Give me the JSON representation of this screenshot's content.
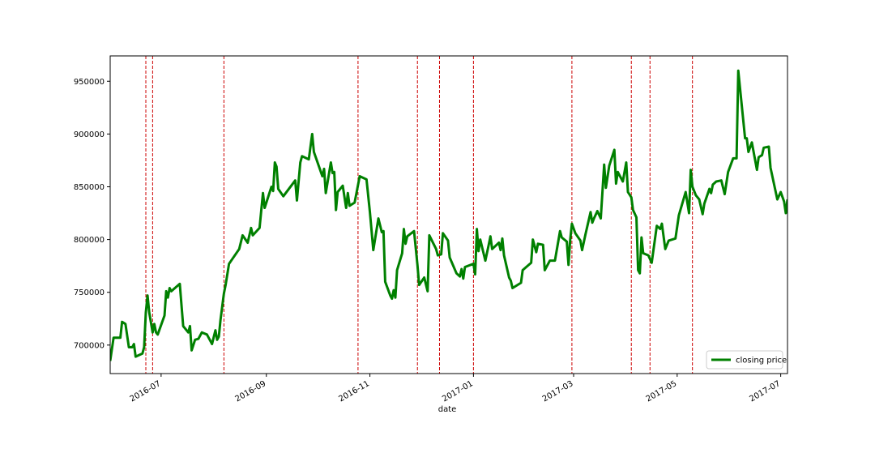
{
  "chart_data": {
    "type": "line",
    "x_label": "date",
    "x": [
      "2016-06-01",
      "2016-06-03",
      "2016-06-07",
      "2016-06-08",
      "2016-06-10",
      "2016-06-12",
      "2016-06-14",
      "2016-06-15",
      "2016-06-16",
      "2016-06-20",
      "2016-06-21",
      "2016-06-22",
      "2016-06-23",
      "2016-06-24",
      "2016-06-26",
      "2016-06-27",
      "2016-06-28",
      "2016-06-29",
      "2016-07-03",
      "2016-07-04",
      "2016-07-05",
      "2016-07-06",
      "2016-07-07",
      "2016-07-12",
      "2016-07-14",
      "2016-07-17",
      "2016-07-18",
      "2016-07-19",
      "2016-07-21",
      "2016-07-23",
      "2016-07-25",
      "2016-07-28",
      "2016-07-31",
      "2016-08-02",
      "2016-08-03",
      "2016-08-04",
      "2016-08-05",
      "2016-08-07",
      "2016-08-08",
      "2016-08-10",
      "2016-08-13",
      "2016-08-16",
      "2016-08-18",
      "2016-08-21",
      "2016-08-23",
      "2016-08-24",
      "2016-08-28",
      "2016-08-30",
      "2016-08-31",
      "2016-09-01",
      "2016-09-04",
      "2016-09-05",
      "2016-09-06",
      "2016-09-07",
      "2016-09-08",
      "2016-09-11",
      "2016-09-18",
      "2016-09-19",
      "2016-09-21",
      "2016-09-22",
      "2016-09-26",
      "2016-09-27",
      "2016-09-28",
      "2016-09-29",
      "2016-10-04",
      "2016-10-05",
      "2016-10-06",
      "2016-10-09",
      "2016-10-10",
      "2016-10-11",
      "2016-10-12",
      "2016-10-13",
      "2016-10-16",
      "2016-10-18",
      "2016-10-19",
      "2016-10-20",
      "2016-10-23",
      "2016-10-26",
      "2016-10-30",
      "2016-11-01",
      "2016-11-03",
      "2016-11-06",
      "2016-11-08",
      "2016-11-09",
      "2016-11-10",
      "2016-11-13",
      "2016-11-14",
      "2016-11-15",
      "2016-11-16",
      "2016-11-17",
      "2016-11-20",
      "2016-11-21",
      "2016-11-22",
      "2016-11-23",
      "2016-11-27",
      "2016-11-29",
      "2016-11-30",
      "2016-12-03",
      "2016-12-05",
      "2016-12-06",
      "2016-12-10",
      "2016-12-11",
      "2016-12-13",
      "2016-12-14",
      "2016-12-17",
      "2016-12-18",
      "2016-12-22",
      "2016-12-24",
      "2016-12-25",
      "2016-12-26",
      "2016-12-27",
      "2017-01-01",
      "2017-01-02",
      "2017-01-03",
      "2017-01-04",
      "2017-01-05",
      "2017-01-08",
      "2017-01-10",
      "2017-01-11",
      "2017-01-12",
      "2017-01-16",
      "2017-01-17",
      "2017-01-18",
      "2017-01-19",
      "2017-01-22",
      "2017-01-23",
      "2017-01-24",
      "2017-01-29",
      "2017-01-30",
      "2017-02-04",
      "2017-02-05",
      "2017-02-07",
      "2017-02-08",
      "2017-02-11",
      "2017-02-12",
      "2017-02-15",
      "2017-02-18",
      "2017-02-21",
      "2017-02-22",
      "2017-02-25",
      "2017-02-26",
      "2017-02-27",
      "2017-02-28",
      "2017-03-02",
      "2017-03-05",
      "2017-03-06",
      "2017-03-08",
      "2017-03-11",
      "2017-03-12",
      "2017-03-13",
      "2017-03-15",
      "2017-03-17",
      "2017-03-19",
      "2017-03-20",
      "2017-03-22",
      "2017-03-24",
      "2017-03-25",
      "2017-03-26",
      "2017-03-27",
      "2017-03-30",
      "2017-04-01",
      "2017-04-02",
      "2017-04-04",
      "2017-04-05",
      "2017-04-07",
      "2017-04-08",
      "2017-04-09",
      "2017-04-10",
      "2017-04-11",
      "2017-04-14",
      "2017-04-16",
      "2017-04-19",
      "2017-04-21",
      "2017-04-22",
      "2017-04-24",
      "2017-04-26",
      "2017-04-30",
      "2017-05-02",
      "2017-05-06",
      "2017-05-08",
      "2017-05-09",
      "2017-05-10",
      "2017-05-12",
      "2017-05-14",
      "2017-05-16",
      "2017-05-17",
      "2017-05-20",
      "2017-05-21",
      "2017-05-22",
      "2017-05-24",
      "2017-05-27",
      "2017-05-29",
      "2017-05-31",
      "2017-06-03",
      "2017-06-05",
      "2017-06-06",
      "2017-06-10",
      "2017-06-11",
      "2017-06-12",
      "2017-06-14",
      "2017-06-17",
      "2017-06-18",
      "2017-06-20",
      "2017-06-21",
      "2017-06-24",
      "2017-06-25",
      "2017-06-27",
      "2017-06-29",
      "2017-07-01",
      "2017-07-03",
      "2017-07-04",
      "2017-07-05"
    ],
    "series": [
      {
        "name": "closing price",
        "color": "#008000",
        "values": [
          685000,
          707000,
          707000,
          722000,
          720000,
          698000,
          698000,
          701000,
          689000,
          692000,
          698000,
          731000,
          747000,
          731000,
          712000,
          720000,
          712000,
          710000,
          728000,
          751000,
          745000,
          754000,
          751000,
          758000,
          718000,
          712000,
          718000,
          695000,
          705000,
          706000,
          712000,
          710000,
          701000,
          714000,
          705000,
          708000,
          724000,
          749000,
          757000,
          777000,
          784000,
          791000,
          804000,
          797000,
          811000,
          804000,
          811000,
          844000,
          830000,
          835000,
          850000,
          846000,
          873000,
          869000,
          848000,
          841000,
          856000,
          837000,
          873000,
          879000,
          876000,
          888000,
          900000,
          883000,
          860000,
          867000,
          844000,
          873000,
          863000,
          864000,
          828000,
          845000,
          851000,
          830000,
          844000,
          832000,
          835000,
          860000,
          857000,
          826000,
          790000,
          820000,
          807000,
          808000,
          760000,
          747000,
          744000,
          752000,
          745000,
          771000,
          787000,
          810000,
          796000,
          803000,
          808000,
          776000,
          757000,
          764000,
          751000,
          804000,
          791000,
          785000,
          786000,
          806000,
          799000,
          783000,
          768000,
          765000,
          772000,
          763000,
          774000,
          777000,
          767000,
          810000,
          789000,
          800000,
          780000,
          795000,
          803000,
          791000,
          797000,
          790000,
          801000,
          785000,
          764000,
          761000,
          754000,
          759000,
          771000,
          778000,
          800000,
          788000,
          796000,
          795000,
          771000,
          780000,
          780000,
          808000,
          802000,
          798000,
          776000,
          800000,
          815000,
          806000,
          799000,
          790000,
          805000,
          826000,
          816000,
          820000,
          827000,
          820000,
          871000,
          849000,
          870000,
          880000,
          885000,
          853000,
          864000,
          855000,
          873000,
          845000,
          840000,
          828000,
          821000,
          771000,
          768000,
          802000,
          787000,
          785000,
          778000,
          813000,
          810000,
          815000,
          791000,
          799000,
          801000,
          823000,
          845000,
          825000,
          866000,
          850000,
          842000,
          838000,
          824000,
          834000,
          848000,
          844000,
          852000,
          855000,
          856000,
          843000,
          864000,
          877000,
          877000,
          960000,
          896000,
          896000,
          883000,
          892000,
          866000,
          878000,
          880000,
          887000,
          888000,
          868000,
          853000,
          838000,
          845000,
          836000,
          825000,
          838000
        ]
      }
    ],
    "vlines": [
      "2016-06-22",
      "2016-06-26",
      "2016-08-07",
      "2016-10-25",
      "2016-11-29",
      "2016-12-12",
      "2017-01-01",
      "2017-02-28",
      "2017-04-04",
      "2017-04-15",
      "2017-05-10"
    ],
    "vline_color": "#cc0000",
    "xlim": [
      "2016-06-01",
      "2017-07-05"
    ],
    "xticks": [
      "2016-07",
      "2016-09",
      "2016-11",
      "2017-01",
      "2017-03",
      "2017-05",
      "2017-07"
    ],
    "ylim": [
      673000,
      974000
    ],
    "yticks": [
      700000,
      750000,
      800000,
      850000,
      900000,
      950000
    ],
    "legend": "lower right",
    "grid": false
  }
}
